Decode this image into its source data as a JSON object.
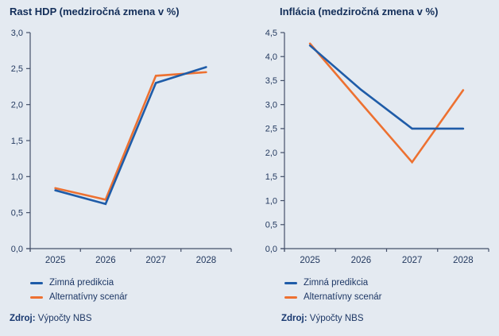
{
  "page": {
    "background_color": "#e4eaf1",
    "accent_navy": "#132e59"
  },
  "source": {
    "label": "Zdroj:",
    "text": " Výpočty NBS"
  },
  "chart_data": [
    {
      "type": "line",
      "title": "Rast HDP (medziročná zmena v %)",
      "categories": [
        "2025",
        "2026",
        "2027",
        "2028"
      ],
      "series": [
        {
          "name": "Zimná predikcia",
          "color": "#1f5ca8",
          "values": [
            0.81,
            0.62,
            2.3,
            2.52
          ]
        },
        {
          "name": "Alternatívny scenár",
          "color": "#ed7131",
          "values": [
            0.84,
            0.68,
            2.4,
            2.45
          ]
        }
      ],
      "ylim": [
        0.0,
        3.0
      ],
      "ytick_step": 0.5,
      "decimal_separator": ",",
      "grid": false,
      "legend_position": "bottom-left"
    },
    {
      "type": "line",
      "title": "Inflácia (medziročná zmena v %)",
      "categories": [
        "2025",
        "2026",
        "2027",
        "2028"
      ],
      "series": [
        {
          "name": "Zimná predikcia",
          "color": "#1f5ca8",
          "values": [
            4.23,
            3.31,
            2.5,
            2.5
          ]
        },
        {
          "name": "Alternatívny scenár",
          "color": "#ed7131",
          "values": [
            4.27,
            3.03,
            1.8,
            3.3
          ]
        }
      ],
      "ylim": [
        0.0,
        4.5
      ],
      "ytick_step": 0.5,
      "decimal_separator": ",",
      "grid": false,
      "legend_position": "bottom-left"
    }
  ]
}
